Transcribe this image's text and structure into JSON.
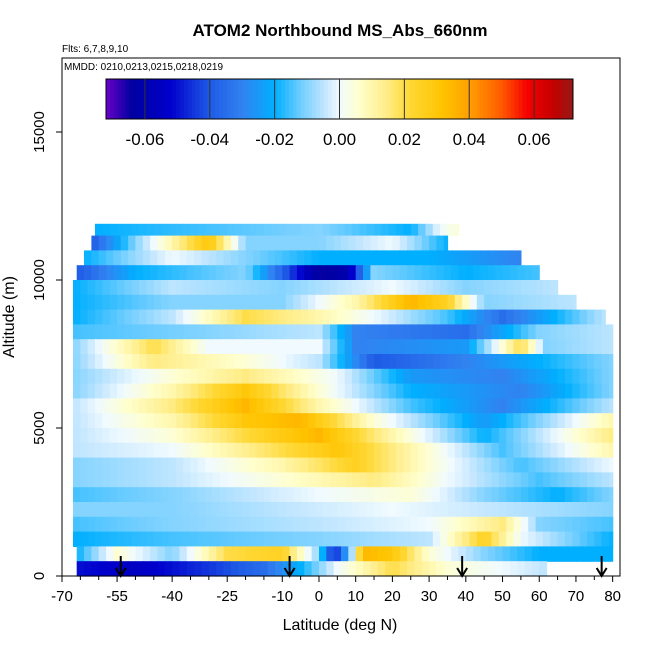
{
  "chart_data": {
    "type": "heatmap",
    "title": "ATOM2 Northbound MS_Abs_660nm",
    "flights_note": "Flts: 6,7,8,9,10",
    "dates_note": "MMDD: 0210,0213,0215,0218,0219",
    "xlabel": "Latitude (deg N)",
    "ylabel": "Altitude (m)",
    "xlim": [
      -70,
      82
    ],
    "ylim": [
      0,
      17500
    ],
    "x_ticks": [
      -70,
      -55,
      -40,
      -25,
      -10,
      0,
      10,
      20,
      30,
      40,
      50,
      60,
      70,
      80
    ],
    "x_tick_labels": [
      "-70",
      "-55",
      "-40",
      "-25",
      "-10",
      "0",
      "10",
      "20",
      "30",
      "40",
      "50",
      "60",
      "70",
      "80"
    ],
    "y_ticks": [
      0,
      5000,
      10000,
      15000
    ],
    "y_tick_labels": [
      "0",
      "5000",
      "10000",
      "15000"
    ],
    "colorbar": {
      "range": [
        -0.072,
        0.072
      ],
      "ticks": [
        -0.06,
        -0.04,
        -0.02,
        0.0,
        0.02,
        0.04,
        0.06
      ],
      "tick_labels": [
        "-0.06",
        "-0.04",
        "-0.02",
        "0.00",
        "0.02",
        "0.04",
        "0.06"
      ]
    },
    "arrow_latitudes": [
      -54,
      -8,
      39,
      77
    ],
    "layer_rows": [
      {
        "alt_bottom": 11500,
        "alt_top": 11900,
        "lat_start": -61,
        "lat_end": 38,
        "knots": [
          [
            -61,
            -0.02
          ],
          [
            -30,
            -0.015
          ],
          [
            0,
            -0.01
          ],
          [
            25,
            -0.02
          ],
          [
            33,
            0.0
          ],
          [
            38,
            0.005
          ]
        ]
      },
      {
        "alt_bottom": 11000,
        "alt_top": 11500,
        "lat_start": -62,
        "lat_end": 35,
        "knots": [
          [
            -62,
            -0.04
          ],
          [
            -50,
            -0.01
          ],
          [
            -35,
            0.02
          ],
          [
            -30,
            0.03
          ],
          [
            -20,
            -0.01
          ],
          [
            0,
            -0.01
          ],
          [
            20,
            0.0
          ],
          [
            35,
            -0.02
          ]
        ]
      },
      {
        "alt_bottom": 10500,
        "alt_top": 11000,
        "lat_start": -64,
        "lat_end": 55,
        "knots": [
          [
            -64,
            -0.02
          ],
          [
            -40,
            0.0
          ],
          [
            -20,
            -0.01
          ],
          [
            0,
            -0.02
          ],
          [
            30,
            -0.02
          ],
          [
            55,
            -0.03
          ]
        ]
      },
      {
        "alt_bottom": 10000,
        "alt_top": 10500,
        "lat_start": -66,
        "lat_end": 60,
        "knots": [
          [
            -66,
            -0.04
          ],
          [
            -50,
            -0.02
          ],
          [
            -20,
            -0.01
          ],
          [
            0,
            -0.065
          ],
          [
            8,
            -0.06
          ],
          [
            15,
            -0.01
          ],
          [
            40,
            -0.02
          ],
          [
            60,
            -0.015
          ]
        ]
      },
      {
        "alt_bottom": 9500,
        "alt_top": 10000,
        "lat_start": -67,
        "lat_end": 65,
        "knots": [
          [
            -67,
            -0.02
          ],
          [
            -40,
            -0.005
          ],
          [
            -10,
            -0.01
          ],
          [
            20,
            0.0
          ],
          [
            40,
            -0.01
          ],
          [
            65,
            -0.005
          ]
        ]
      },
      {
        "alt_bottom": 9000,
        "alt_top": 9500,
        "lat_start": -67,
        "lat_end": 70,
        "knots": [
          [
            -67,
            -0.02
          ],
          [
            -40,
            -0.01
          ],
          [
            -10,
            -0.01
          ],
          [
            10,
            0.01
          ],
          [
            25,
            0.035
          ],
          [
            35,
            0.025
          ],
          [
            45,
            -0.01
          ],
          [
            70,
            -0.005
          ]
        ]
      },
      {
        "alt_bottom": 8500,
        "alt_top": 9000,
        "lat_start": -67,
        "lat_end": 78,
        "knots": [
          [
            -67,
            -0.02
          ],
          [
            -40,
            -0.005
          ],
          [
            -20,
            0.02
          ],
          [
            0,
            0.01
          ],
          [
            15,
            0.0
          ],
          [
            35,
            -0.015
          ],
          [
            50,
            -0.035
          ],
          [
            78,
            -0.005
          ]
        ]
      },
      {
        "alt_bottom": 8000,
        "alt_top": 8500,
        "lat_start": -67,
        "lat_end": 80,
        "knots": [
          [
            -67,
            -0.015
          ],
          [
            -30,
            -0.01
          ],
          [
            0,
            -0.005
          ],
          [
            10,
            -0.03
          ],
          [
            40,
            -0.035
          ],
          [
            60,
            -0.01
          ],
          [
            80,
            -0.005
          ]
        ]
      },
      {
        "alt_bottom": 7500,
        "alt_top": 8000,
        "lat_start": -67,
        "lat_end": 80,
        "knots": [
          [
            -67,
            -0.01
          ],
          [
            -45,
            0.02
          ],
          [
            -30,
            0.0
          ],
          [
            0,
            0.0
          ],
          [
            10,
            -0.03
          ],
          [
            40,
            -0.025
          ],
          [
            55,
            0.02
          ],
          [
            62,
            -0.01
          ],
          [
            80,
            -0.005
          ]
        ]
      },
      {
        "alt_bottom": 7000,
        "alt_top": 7500,
        "lat_start": -67,
        "lat_end": 80,
        "knots": [
          [
            -67,
            -0.01
          ],
          [
            -45,
            0.015
          ],
          [
            -20,
            0.005
          ],
          [
            0,
            -0.005
          ],
          [
            15,
            -0.04
          ],
          [
            40,
            -0.03
          ],
          [
            60,
            -0.02
          ],
          [
            80,
            -0.01
          ]
        ]
      },
      {
        "alt_bottom": 6500,
        "alt_top": 7000,
        "lat_start": -67,
        "lat_end": 80,
        "knots": [
          [
            -67,
            -0.01
          ],
          [
            -40,
            0.005
          ],
          [
            -20,
            0.015
          ],
          [
            5,
            0.0
          ],
          [
            25,
            -0.025
          ],
          [
            50,
            -0.03
          ],
          [
            80,
            -0.01
          ]
        ]
      },
      {
        "alt_bottom": 6000,
        "alt_top": 6500,
        "lat_start": -67,
        "lat_end": 80,
        "knots": [
          [
            -67,
            -0.01
          ],
          [
            -40,
            0.01
          ],
          [
            -20,
            0.03
          ],
          [
            0,
            0.005
          ],
          [
            25,
            -0.02
          ],
          [
            55,
            -0.03
          ],
          [
            80,
            -0.01
          ]
        ]
      },
      {
        "alt_bottom": 5500,
        "alt_top": 6000,
        "lat_start": -67,
        "lat_end": 80,
        "knots": [
          [
            -67,
            -0.005
          ],
          [
            -40,
            0.015
          ],
          [
            -20,
            0.035
          ],
          [
            0,
            0.01
          ],
          [
            25,
            -0.015
          ],
          [
            50,
            -0.03
          ],
          [
            80,
            -0.005
          ]
        ]
      },
      {
        "alt_bottom": 5000,
        "alt_top": 5500,
        "lat_start": -67,
        "lat_end": 80,
        "knots": [
          [
            -67,
            -0.005
          ],
          [
            -40,
            0.01
          ],
          [
            -20,
            0.03
          ],
          [
            -5,
            0.035
          ],
          [
            15,
            0.005
          ],
          [
            45,
            -0.025
          ],
          [
            80,
            0.01
          ]
        ]
      },
      {
        "alt_bottom": 4500,
        "alt_top": 5000,
        "lat_start": -67,
        "lat_end": 80,
        "knots": [
          [
            -67,
            -0.005
          ],
          [
            -40,
            0.005
          ],
          [
            -15,
            0.025
          ],
          [
            0,
            0.035
          ],
          [
            20,
            0.01
          ],
          [
            45,
            -0.02
          ],
          [
            80,
            0.015
          ]
        ]
      },
      {
        "alt_bottom": 4000,
        "alt_top": 4500,
        "lat_start": -67,
        "lat_end": 80,
        "knots": [
          [
            -67,
            -0.005
          ],
          [
            -40,
            0.0
          ],
          [
            -10,
            0.02
          ],
          [
            5,
            0.03
          ],
          [
            25,
            0.01
          ],
          [
            50,
            -0.015
          ],
          [
            80,
            0.01
          ]
        ]
      },
      {
        "alt_bottom": 3500,
        "alt_top": 4000,
        "lat_start": -67,
        "lat_end": 80,
        "knots": [
          [
            -67,
            -0.01
          ],
          [
            -40,
            -0.005
          ],
          [
            -10,
            0.01
          ],
          [
            10,
            0.025
          ],
          [
            30,
            0.005
          ],
          [
            55,
            -0.015
          ],
          [
            80,
            0.0
          ]
        ]
      },
      {
        "alt_bottom": 3000,
        "alt_top": 3500,
        "lat_start": -67,
        "lat_end": 80,
        "knots": [
          [
            -67,
            -0.01
          ],
          [
            -40,
            -0.005
          ],
          [
            -10,
            0.005
          ],
          [
            15,
            0.015
          ],
          [
            35,
            0.0
          ],
          [
            60,
            -0.015
          ],
          [
            80,
            -0.005
          ]
        ]
      },
      {
        "alt_bottom": 2500,
        "alt_top": 3000,
        "lat_start": -67,
        "lat_end": 80,
        "knots": [
          [
            -67,
            -0.015
          ],
          [
            -40,
            -0.01
          ],
          [
            0,
            0.0
          ],
          [
            25,
            0.005
          ],
          [
            45,
            -0.01
          ],
          [
            65,
            -0.02
          ],
          [
            80,
            -0.01
          ]
        ]
      },
      {
        "alt_bottom": 2000,
        "alt_top": 2500,
        "lat_start": -67,
        "lat_end": 80,
        "knots": [
          [
            -67,
            -0.01
          ],
          [
            -40,
            -0.01
          ],
          [
            -10,
            -0.005
          ],
          [
            20,
            0.0
          ],
          [
            50,
            -0.005
          ],
          [
            80,
            -0.01
          ]
        ]
      },
      {
        "alt_bottom": 1500,
        "alt_top": 2000,
        "lat_start": -67,
        "lat_end": 80,
        "knots": [
          [
            -67,
            -0.015
          ],
          [
            -40,
            -0.01
          ],
          [
            0,
            -0.005
          ],
          [
            30,
            0.0
          ],
          [
            50,
            0.015
          ],
          [
            60,
            -0.01
          ],
          [
            80,
            -0.015
          ]
        ]
      },
      {
        "alt_bottom": 1000,
        "alt_top": 1500,
        "lat_start": -67,
        "lat_end": 80,
        "knots": [
          [
            -67,
            -0.02
          ],
          [
            -40,
            -0.015
          ],
          [
            0,
            -0.01
          ],
          [
            30,
            -0.005
          ],
          [
            45,
            0.025
          ],
          [
            55,
            0.0
          ],
          [
            80,
            -0.02
          ]
        ]
      },
      {
        "alt_bottom": 500,
        "alt_top": 1000,
        "lat_start": -66,
        "lat_end": 80,
        "knots": [
          [
            -66,
            -0.02
          ],
          [
            -55,
            0.005
          ],
          [
            -40,
            -0.01
          ],
          [
            -25,
            0.02
          ],
          [
            -10,
            0.025
          ],
          [
            0,
            -0.01
          ],
          [
            4,
            -0.05
          ],
          [
            8,
            -0.02
          ],
          [
            12,
            0.035
          ],
          [
            20,
            0.03
          ],
          [
            30,
            0.005
          ],
          [
            45,
            -0.01
          ],
          [
            60,
            -0.02
          ],
          [
            80,
            -0.02
          ]
        ]
      },
      {
        "alt_bottom": 0,
        "alt_top": 500,
        "lat_start": -66,
        "lat_end": 62,
        "knots": [
          [
            -66,
            -0.05
          ],
          [
            -50,
            -0.055
          ],
          [
            -30,
            -0.045
          ],
          [
            -15,
            -0.035
          ],
          [
            -5,
            -0.02
          ],
          [
            5,
            0.0
          ],
          [
            20,
            0.02
          ],
          [
            35,
            0.005
          ],
          [
            50,
            0.0
          ],
          [
            62,
            -0.005
          ]
        ]
      }
    ]
  }
}
